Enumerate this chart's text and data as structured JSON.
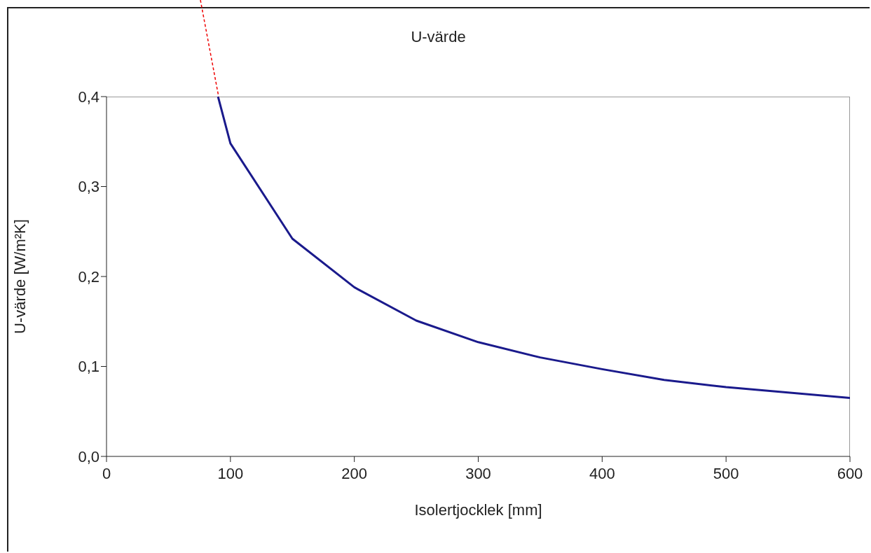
{
  "chart_data": {
    "type": "line",
    "title": "U-värde",
    "xlabel": "Isolertjocklek [mm]",
    "ylabel": "U-värde [W/m²K]",
    "series": [
      {
        "color": "#1a1a8c",
        "x": [
          90,
          100,
          150,
          200,
          250,
          300,
          350,
          400,
          450,
          500,
          600
        ],
        "values": [
          0.4,
          0.348,
          0.242,
          0.188,
          0.151,
          0.127,
          0.11,
          0.097,
          0.085,
          0.077,
          0.065
        ]
      }
    ],
    "xlim": [
      0,
      600
    ],
    "xticks": [
      0,
      100,
      200,
      300,
      400,
      500,
      600
    ],
    "ylim": [
      0,
      0.4
    ],
    "yticks": [
      {
        "value": 0,
        "label": "0,0"
      },
      {
        "value": 0.1,
        "label": "0,1"
      },
      {
        "value": 0.2,
        "label": "0,2"
      },
      {
        "value": 0.3,
        "label": "0,3"
      },
      {
        "value": 0.4,
        "label": "0,4"
      }
    ],
    "marker": "none",
    "line_style": "solid"
  }
}
